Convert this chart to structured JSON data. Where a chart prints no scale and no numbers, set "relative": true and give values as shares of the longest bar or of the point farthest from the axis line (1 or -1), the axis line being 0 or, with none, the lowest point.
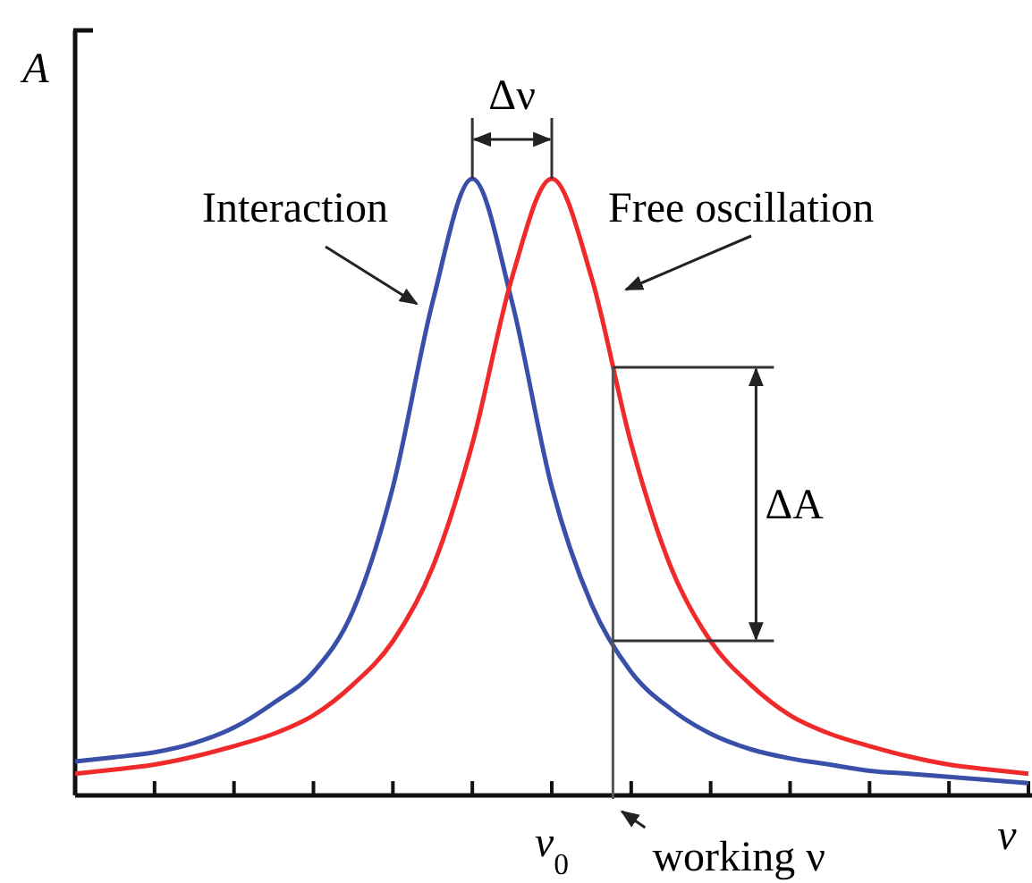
{
  "chart_data": {
    "type": "line",
    "relative": true,
    "xlabel": "ν",
    "ylabel": "A",
    "categories": [
      null,
      null,
      null,
      null,
      null,
      null,
      null,
      null,
      null,
      null,
      null,
      null,
      null,
      null,
      null,
      null,
      null,
      null,
      null,
      null,
      null,
      null,
      null,
      null,
      null
    ],
    "series": [
      {
        "color": "#3a4fa8",
        "values": [
          0.055,
          0.062,
          0.07,
          0.085,
          0.11,
          0.15,
          0.2,
          0.3,
          0.5,
          0.8,
          1,
          0.8,
          0.5,
          0.31,
          0.2,
          0.14,
          0.1,
          0.075,
          0.06,
          0.05,
          0.04,
          0.035,
          0.03,
          0.025,
          0.02
        ]
      },
      {
        "color": "#f02a2a",
        "values": [
          0.035,
          0.042,
          0.05,
          0.063,
          0.08,
          0.1,
          0.13,
          0.18,
          0.25,
          0.37,
          0.57,
          0.84,
          1,
          0.84,
          0.57,
          0.37,
          0.25,
          0.18,
          0.13,
          0.1,
          0.08,
          0.063,
          0.05,
          0.042,
          0.035
        ]
      }
    ],
    "annotations": [
      "Interaction",
      "Free oscillation",
      "Δν",
      "ΔA",
      "ν$_{0}$",
      "working ν"
    ],
    "line_style": "solid"
  }
}
